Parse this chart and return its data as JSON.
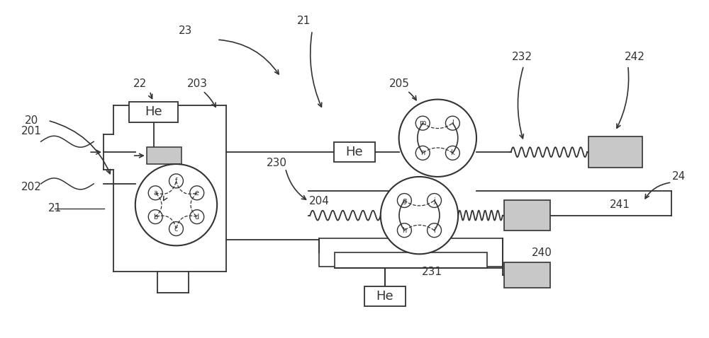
{
  "bg_color": "#ffffff",
  "lc": "#333333",
  "lw": 1.3,
  "fs": 11,
  "gray_fill": "#c8c8c8",
  "figsize": [
    10.0,
    4.78
  ],
  "dpi": 100,
  "xlim": [
    0,
    1000
  ],
  "ylim": [
    0,
    478
  ]
}
